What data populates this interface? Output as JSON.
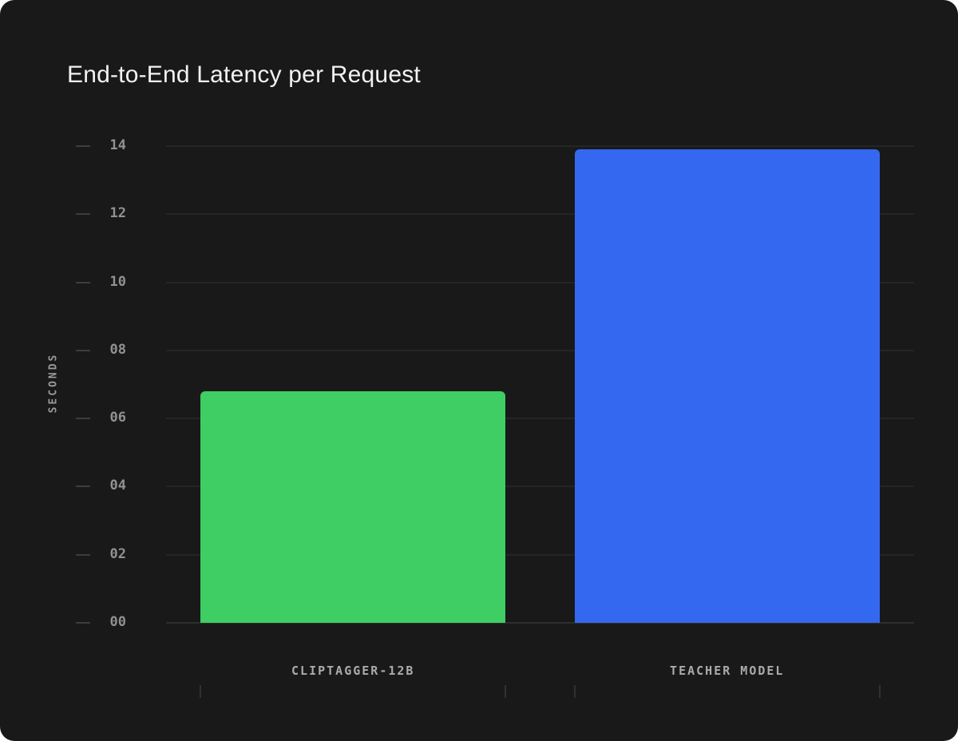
{
  "chart_data": {
    "type": "bar",
    "title": "End-to-End Latency per Request",
    "categories": [
      "CLIPTAGGER-12B",
      "TEACHER MODEL"
    ],
    "values": [
      6.8,
      13.9
    ],
    "xlabel": "",
    "ylabel": "SECONDS",
    "ylim": [
      0,
      14
    ],
    "ytick_step": 2,
    "ytick_labels": [
      "00",
      "02",
      "04",
      "06",
      "08",
      "10",
      "12",
      "14"
    ],
    "grid": true,
    "legend": false,
    "bar_colors": [
      "#3FCE63",
      "#3568F0"
    ],
    "theme": {
      "card_background": "#191919",
      "page_background": "#ffffff",
      "title_color": "#f2f2f2",
      "gridline_color": "#252525",
      "baseline_color": "#2e2e2e",
      "ytick_dash_color": "#3d3d3d",
      "ytick_label_color": "#919191",
      "axis_title_color": "#9a9a9a",
      "category_label_color": "#ababab",
      "xtick_color": "#313131"
    }
  }
}
